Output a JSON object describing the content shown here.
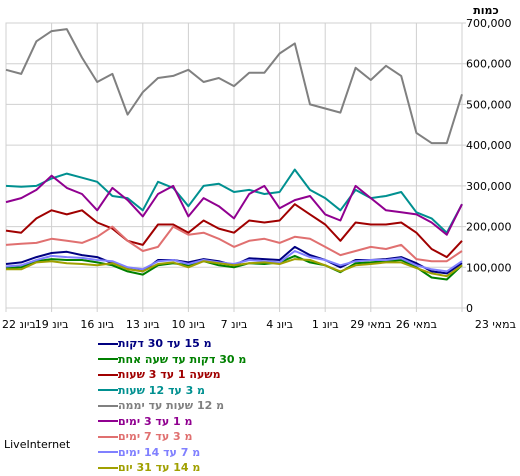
{
  "brand": "LiveInternet",
  "chart_data": {
    "type": "line",
    "ylabel": "כמות",
    "ylim": [
      0,
      700000
    ],
    "yticks": [
      "0",
      "100,000",
      "200,000",
      "300,000",
      "400,000",
      "500,000",
      "600,000",
      "700,000"
    ],
    "xtick_labels": [
      "22 ביונ",
      "19 ביונ",
      "16 ביונ",
      "13 ביונ",
      "10 ביונ",
      "7 ביונ",
      "4 ביונ",
      "1 ביונ",
      "29 במאי",
      "26 במאי",
      "23 במאי"
    ],
    "grid": true,
    "legend_position": "bottom",
    "series": [
      {
        "name": "מ 15 עד 30 דקות",
        "color": "#000080",
        "values": [
          108000,
          112000,
          125000,
          135000,
          138000,
          130000,
          125000,
          110000,
          98000,
          90000,
          118000,
          118000,
          112000,
          120000,
          115000,
          105000,
          122000,
          120000,
          118000,
          150000,
          130000,
          118000,
          100000,
          118000,
          118000,
          120000,
          125000,
          110000,
          90000,
          85000,
          110000
        ]
      },
      {
        "name": "מ 30 דקות עד שעה אחת",
        "color": "#008000",
        "values": [
          98000,
          100000,
          115000,
          120000,
          118000,
          118000,
          112000,
          105000,
          90000,
          82000,
          105000,
          110000,
          105000,
          115000,
          105000,
          100000,
          110000,
          108000,
          112000,
          128000,
          112000,
          105000,
          88000,
          110000,
          112000,
          115000,
          118000,
          100000,
          75000,
          70000,
          105000
        ]
      },
      {
        "name": "משעה 1 עד 3 שעות",
        "color": "#a00000",
        "values": [
          190000,
          185000,
          220000,
          240000,
          230000,
          240000,
          210000,
          195000,
          165000,
          155000,
          205000,
          205000,
          185000,
          215000,
          195000,
          185000,
          215000,
          210000,
          215000,
          255000,
          230000,
          205000,
          165000,
          210000,
          205000,
          205000,
          210000,
          185000,
          145000,
          125000,
          165000
        ]
      },
      {
        "name": "מ 3 עד 12 שעות",
        "color": "#009090",
        "values": [
          300000,
          298000,
          300000,
          318000,
          330000,
          320000,
          310000,
          275000,
          270000,
          240000,
          310000,
          295000,
          250000,
          300000,
          305000,
          285000,
          290000,
          280000,
          285000,
          340000,
          290000,
          270000,
          240000,
          290000,
          270000,
          275000,
          285000,
          235000,
          220000,
          185000,
          255000
        ]
      },
      {
        "name": "מ 12 שעות עד יממה",
        "color": "#808080",
        "values": [
          585000,
          575000,
          655000,
          680000,
          685000,
          615000,
          555000,
          575000,
          475000,
          530000,
          565000,
          570000,
          585000,
          555000,
          565000,
          545000,
          578000,
          578000,
          625000,
          650000,
          500000,
          490000,
          480000,
          590000,
          560000,
          595000,
          570000,
          430000,
          405000,
          405000,
          525000
        ]
      },
      {
        "name": "מ 1 עד 3 ימים",
        "color": "#900090",
        "values": [
          260000,
          270000,
          290000,
          325000,
          295000,
          280000,
          240000,
          295000,
          265000,
          225000,
          280000,
          300000,
          225000,
          270000,
          250000,
          220000,
          280000,
          300000,
          245000,
          265000,
          275000,
          230000,
          215000,
          300000,
          270000,
          240000,
          235000,
          230000,
          210000,
          180000,
          255000
        ]
      },
      {
        "name": "מ 3 עד 7 ימים",
        "color": "#e07070",
        "values": [
          155000,
          158000,
          160000,
          170000,
          165000,
          160000,
          175000,
          200000,
          165000,
          140000,
          150000,
          200000,
          180000,
          185000,
          170000,
          150000,
          165000,
          170000,
          160000,
          175000,
          170000,
          150000,
          130000,
          140000,
          150000,
          145000,
          155000,
          120000,
          115000,
          115000,
          140000
        ]
      },
      {
        "name": "מ 7 עד 14 ימים",
        "color": "#8080ff",
        "values": [
          102000,
          105000,
          118000,
          128000,
          125000,
          123000,
          118000,
          115000,
          100000,
          95000,
          115000,
          118000,
          108000,
          118000,
          112000,
          108000,
          118000,
          115000,
          112000,
          140000,
          125000,
          118000,
          105000,
          115000,
          118000,
          118000,
          122000,
          105000,
          95000,
          90000,
          115000
        ]
      },
      {
        "name": "מ 14 עד 31 יום",
        "color": "#a0a000",
        "values": [
          95000,
          95000,
          112000,
          115000,
          110000,
          108000,
          105000,
          110000,
          95000,
          90000,
          108000,
          112000,
          100000,
          115000,
          110000,
          105000,
          110000,
          112000,
          108000,
          120000,
          118000,
          105000,
          90000,
          105000,
          108000,
          112000,
          112000,
          98000,
          85000,
          78000,
          105000
        ]
      }
    ]
  }
}
